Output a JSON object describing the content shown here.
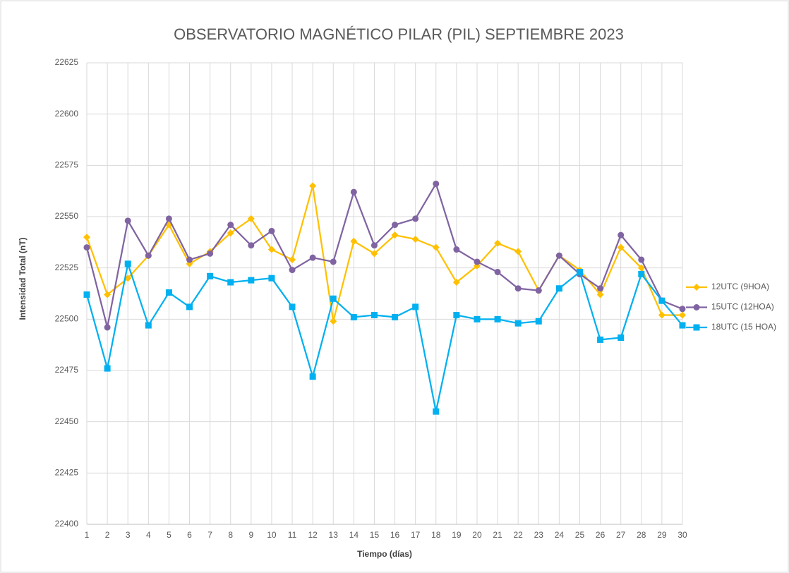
{
  "chart_data": {
    "type": "line",
    "title": "OBSERVATORIO MAGNÉTICO PILAR (PIL) SEPTIEMBRE 2023",
    "x_label": "Tiempo (días)",
    "y_label": "Intensidad Total (nT)",
    "categories": [
      1,
      2,
      3,
      4,
      5,
      6,
      7,
      8,
      9,
      10,
      11,
      12,
      13,
      14,
      15,
      16,
      17,
      18,
      19,
      20,
      21,
      22,
      23,
      24,
      25,
      26,
      27,
      28,
      29,
      30
    ],
    "ylim": [
      22400,
      22625
    ],
    "yticks": [
      22400,
      22425,
      22450,
      22475,
      22500,
      22525,
      22550,
      22575,
      22600,
      22625
    ],
    "grid": true,
    "legend": "right",
    "series": [
      {
        "name": "12UTC (9HOA)",
        "color": "#ffc000",
        "marker": "diamond",
        "values": [
          22540,
          22512,
          22520,
          22531,
          22546,
          22527,
          22533,
          22542,
          22549,
          22534,
          22529,
          22565,
          22499,
          22538,
          22532,
          22541,
          22539,
          22535,
          22518,
          22526,
          22537,
          22533,
          22514,
          22531,
          22524,
          22512,
          22535,
          22525,
          22502,
          22502
        ]
      },
      {
        "name": "15UTC (12HOA)",
        "color": "#8064a2",
        "marker": "circle",
        "values": [
          22535,
          22496,
          22548,
          22531,
          22549,
          22529,
          22532,
          22546,
          22536,
          22543,
          22524,
          22530,
          22528,
          22562,
          22536,
          22546,
          22549,
          22566,
          22534,
          22528,
          22523,
          22515,
          22514,
          22531,
          22522,
          22515,
          22541,
          22529,
          22509,
          22505
        ]
      },
      {
        "name": "18UTC (15 HOA)",
        "color": "#00b0f0",
        "marker": "square",
        "values": [
          22512,
          22476,
          22527,
          22497,
          22513,
          22506,
          22521,
          22518,
          22519,
          22520,
          22506,
          22472,
          22510,
          22501,
          22502,
          22501,
          22506,
          22455,
          22502,
          22500,
          22500,
          22498,
          22499,
          22515,
          22523,
          22490,
          22491,
          22522,
          22509,
          22497
        ]
      }
    ]
  }
}
